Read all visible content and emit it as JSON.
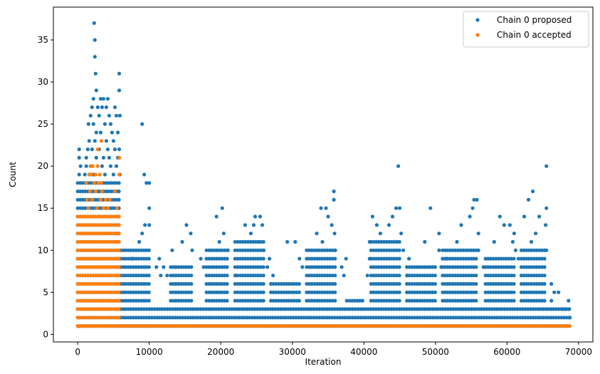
{
  "chart_data": {
    "type": "scatter",
    "title": "",
    "xlabel": "Iteration",
    "ylabel": "Count",
    "xlim": [
      -3400,
      72000
    ],
    "ylim": [
      -0.9,
      38.9
    ],
    "xticks": [
      0,
      10000,
      20000,
      30000,
      40000,
      50000,
      60000,
      70000
    ],
    "yticks": [
      0,
      5,
      10,
      15,
      20,
      25,
      30,
      35
    ],
    "grid": false,
    "legend": "top-right",
    "series": [
      {
        "name": "Chain 0 proposed",
        "color": "#1f77b4",
        "bands": [
          {
            "x0": 0,
            "x1": 6000,
            "y0": 1,
            "y1": 18
          },
          {
            "x0": 6000,
            "x1": 10000,
            "y0": 1,
            "y1": 10
          },
          {
            "x0": 10000,
            "x1": 68800,
            "y0": 1,
            "y1": 3
          },
          {
            "x0": 13000,
            "x1": 16000,
            "y0": 4,
            "y1": 8
          },
          {
            "x0": 18000,
            "x1": 21000,
            "y0": 4,
            "y1": 10
          },
          {
            "x0": 22000,
            "x1": 26000,
            "y0": 4,
            "y1": 11
          },
          {
            "x0": 27000,
            "x1": 31000,
            "y0": 4,
            "y1": 6
          },
          {
            "x0": 32000,
            "x1": 36000,
            "y0": 4,
            "y1": 10
          },
          {
            "x0": 38000,
            "x1": 40000,
            "y0": 4,
            "y1": 4
          },
          {
            "x0": 41000,
            "x1": 45000,
            "y0": 4,
            "y1": 11
          },
          {
            "x0": 46000,
            "x1": 50000,
            "y0": 4,
            "y1": 8
          },
          {
            "x0": 51000,
            "x1": 56000,
            "y0": 4,
            "y1": 10
          },
          {
            "x0": 57000,
            "x1": 61000,
            "y0": 4,
            "y1": 9
          },
          {
            "x0": 62000,
            "x1": 65500,
            "y0": 4,
            "y1": 10
          }
        ],
        "points": [
          [
            2300,
            37
          ],
          [
            2400,
            35
          ],
          [
            2400,
            33
          ],
          [
            2500,
            31
          ],
          [
            2600,
            29
          ],
          [
            2200,
            28
          ],
          [
            5800,
            31
          ],
          [
            5800,
            29
          ],
          [
            3200,
            28
          ],
          [
            3600,
            28
          ],
          [
            4200,
            28
          ],
          [
            2000,
            27
          ],
          [
            2800,
            27
          ],
          [
            3400,
            27
          ],
          [
            4000,
            27
          ],
          [
            5200,
            27
          ],
          [
            1800,
            26
          ],
          [
            3000,
            26
          ],
          [
            4400,
            26
          ],
          [
            5400,
            26
          ],
          [
            5900,
            26
          ],
          [
            9000,
            25
          ],
          [
            1500,
            25
          ],
          [
            2200,
            25
          ],
          [
            3800,
            25
          ],
          [
            4600,
            25
          ],
          [
            2600,
            24
          ],
          [
            3200,
            24
          ],
          [
            4800,
            24
          ],
          [
            5600,
            24
          ],
          [
            1600,
            23
          ],
          [
            2400,
            23
          ],
          [
            4000,
            23
          ],
          [
            5000,
            23
          ],
          [
            200,
            22
          ],
          [
            1400,
            22
          ],
          [
            2000,
            22
          ],
          [
            3000,
            22
          ],
          [
            4200,
            22
          ],
          [
            5200,
            22
          ],
          [
            5800,
            22
          ],
          [
            200,
            21
          ],
          [
            1200,
            21
          ],
          [
            2600,
            21
          ],
          [
            3600,
            21
          ],
          [
            4400,
            21
          ],
          [
            5600,
            21
          ],
          [
            65500,
            20
          ],
          [
            44800,
            20
          ],
          [
            400,
            20
          ],
          [
            1200,
            20
          ],
          [
            1800,
            20
          ],
          [
            3400,
            20
          ],
          [
            4600,
            20
          ],
          [
            5400,
            20
          ],
          [
            9300,
            19
          ],
          [
            200,
            19
          ],
          [
            1000,
            19
          ],
          [
            2200,
            19
          ],
          [
            3800,
            19
          ],
          [
            5000,
            19
          ],
          [
            5900,
            19
          ],
          [
            9600,
            18
          ],
          [
            10000,
            18
          ],
          [
            35800,
            17
          ],
          [
            63600,
            17
          ],
          [
            35800,
            16
          ],
          [
            55400,
            16
          ],
          [
            55800,
            16
          ],
          [
            63000,
            16
          ],
          [
            10000,
            15
          ],
          [
            20200,
            15
          ],
          [
            34000,
            15
          ],
          [
            34700,
            15
          ],
          [
            44500,
            15
          ],
          [
            45000,
            15
          ],
          [
            49300,
            15
          ],
          [
            55200,
            15
          ],
          [
            65500,
            15
          ],
          [
            19400,
            14
          ],
          [
            24800,
            14
          ],
          [
            25500,
            14
          ],
          [
            35000,
            14
          ],
          [
            41200,
            14
          ],
          [
            44000,
            14
          ],
          [
            54800,
            14
          ],
          [
            59000,
            14
          ],
          [
            62400,
            14
          ],
          [
            64500,
            14
          ],
          [
            9400,
            13
          ],
          [
            10000,
            13
          ],
          [
            15200,
            13
          ],
          [
            23400,
            13
          ],
          [
            24600,
            13
          ],
          [
            25800,
            13
          ],
          [
            35500,
            13
          ],
          [
            41800,
            13
          ],
          [
            43500,
            13
          ],
          [
            53600,
            13
          ],
          [
            59600,
            13
          ],
          [
            60400,
            13
          ],
          [
            65400,
            13
          ],
          [
            9000,
            12
          ],
          [
            15800,
            12
          ],
          [
            20400,
            12
          ],
          [
            24200,
            12
          ],
          [
            33400,
            12
          ],
          [
            35900,
            12
          ],
          [
            42300,
            12
          ],
          [
            45200,
            12
          ],
          [
            50500,
            12
          ],
          [
            56000,
            12
          ],
          [
            61000,
            12
          ],
          [
            64000,
            12
          ],
          [
            8600,
            11
          ],
          [
            14600,
            11
          ],
          [
            19800,
            11
          ],
          [
            25300,
            11
          ],
          [
            29300,
            11
          ],
          [
            30400,
            11
          ],
          [
            34200,
            11
          ],
          [
            40800,
            11
          ],
          [
            44600,
            11
          ],
          [
            48500,
            11
          ],
          [
            53000,
            11
          ],
          [
            58200,
            11
          ],
          [
            60800,
            11
          ],
          [
            63400,
            11
          ],
          [
            13200,
            10
          ],
          [
            16000,
            10
          ],
          [
            21000,
            10
          ],
          [
            26000,
            10
          ],
          [
            36000,
            10
          ],
          [
            45500,
            10
          ],
          [
            50500,
            10
          ],
          [
            56000,
            10
          ],
          [
            61200,
            10
          ],
          [
            65500,
            10
          ],
          [
            7600,
            9
          ],
          [
            11400,
            9
          ],
          [
            17200,
            9
          ],
          [
            26800,
            9
          ],
          [
            31000,
            9
          ],
          [
            37500,
            9
          ],
          [
            40800,
            9
          ],
          [
            46300,
            9
          ],
          [
            51500,
            9
          ],
          [
            57400,
            9
          ],
          [
            61600,
            9
          ],
          [
            11000,
            8
          ],
          [
            12000,
            8
          ],
          [
            17600,
            8
          ],
          [
            26500,
            8
          ],
          [
            31400,
            8
          ],
          [
            36900,
            8
          ],
          [
            50800,
            8
          ],
          [
            56700,
            8
          ],
          [
            11600,
            7
          ],
          [
            12500,
            7
          ],
          [
            22200,
            7
          ],
          [
            27300,
            7
          ],
          [
            37200,
            7
          ],
          [
            40500,
            7
          ],
          [
            46100,
            7
          ],
          [
            62000,
            7
          ],
          [
            66200,
            6
          ],
          [
            66600,
            5
          ],
          [
            67200,
            5
          ],
          [
            37600,
            4
          ],
          [
            39400,
            4
          ],
          [
            66200,
            4
          ],
          [
            68600,
            4
          ],
          [
            67800,
            3
          ],
          [
            68200,
            3
          ],
          [
            68700,
            3
          ],
          [
            68800,
            2
          ]
        ]
      },
      {
        "name": "Chain 0 accepted",
        "color": "#ff7f0e",
        "bands": [
          {
            "x0": 0,
            "x1": 6000,
            "y0": 1,
            "y1": 14
          },
          {
            "x0": 0,
            "x1": 68800,
            "y0": 1,
            "y1": 1
          }
        ],
        "points": [
          [
            1800,
            20
          ],
          [
            2100,
            20
          ],
          [
            2800,
            20
          ],
          [
            1600,
            19
          ],
          [
            1900,
            19
          ],
          [
            2500,
            19
          ],
          [
            3100,
            19
          ],
          [
            5800,
            19
          ],
          [
            1200,
            18
          ],
          [
            2300,
            18
          ],
          [
            2900,
            18
          ],
          [
            3300,
            18
          ],
          [
            1700,
            17
          ],
          [
            2500,
            17
          ],
          [
            3400,
            17
          ],
          [
            5200,
            17
          ],
          [
            1300,
            16
          ],
          [
            2000,
            16
          ],
          [
            3200,
            16
          ],
          [
            3900,
            16
          ],
          [
            4500,
            16
          ],
          [
            1500,
            15
          ],
          [
            2700,
            15
          ],
          [
            3600,
            15
          ],
          [
            4200,
            15
          ],
          [
            5500,
            15
          ],
          [
            3300,
            23
          ],
          [
            2800,
            22
          ],
          [
            5800,
            21
          ],
          [
            300,
            0.95
          ],
          [
            200,
            2
          ],
          [
            400,
            3
          ]
        ]
      }
    ]
  }
}
